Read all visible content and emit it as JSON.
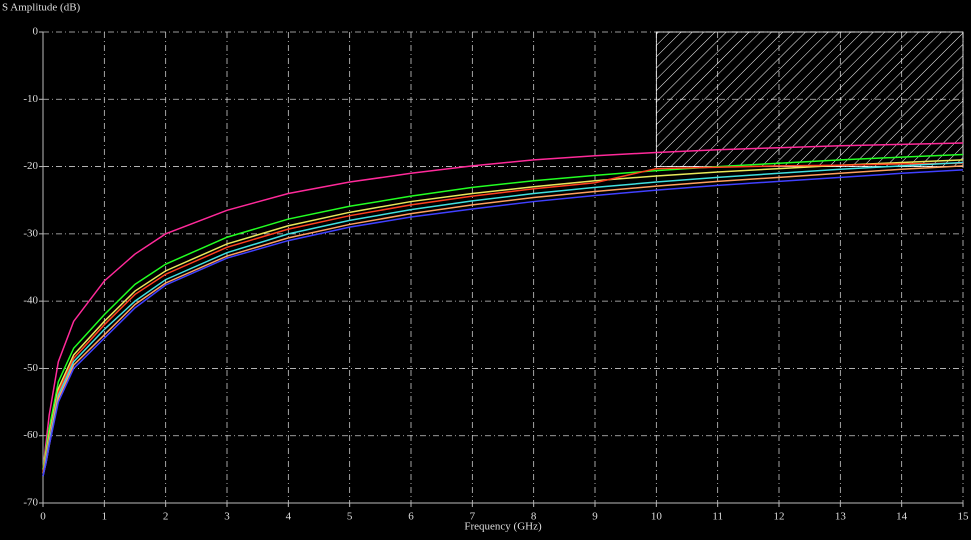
{
  "chart_data": {
    "type": "line",
    "title": "S Amplitude (dB)",
    "x_label": "Frequency (GHz)",
    "x": [
      0,
      0.05,
      0.1,
      0.25,
      0.5,
      1,
      1.5,
      2,
      3,
      4,
      5,
      6,
      7,
      8,
      9,
      10,
      11,
      12,
      13,
      14,
      15
    ],
    "series": [
      {
        "color": "#ff2a9a",
        "values": [
          -65,
          -61,
          -57,
          -49,
          -43,
          -37,
          -33,
          -30,
          -26.5,
          -24,
          -22.3,
          -21,
          -19.9,
          -19,
          -18.4,
          -17.9,
          -17.5,
          -17.2,
          -16.9,
          -16.7,
          -16.5
        ]
      },
      {
        "color": "#22ff22",
        "values": [
          -65,
          -62,
          -59,
          -52,
          -47,
          -42,
          -37.5,
          -34.5,
          -30.5,
          -27.8,
          -25.9,
          -24.4,
          -23.1,
          -22.1,
          -21.3,
          -20.6,
          -20,
          -19.5,
          -19,
          -18.6,
          -18.2
        ]
      },
      {
        "color": "#e8e85a",
        "values": [
          -65.5,
          -62.5,
          -60,
          -53,
          -48,
          -43,
          -38.5,
          -35.5,
          -31.5,
          -28.8,
          -26.8,
          -25.2,
          -24,
          -23,
          -22.1,
          -21.4,
          -20.8,
          -20.3,
          -19.8,
          -19.4,
          -19
        ]
      },
      {
        "color": "#ff4020",
        "values": [
          -65.5,
          -63,
          -60.5,
          -53.5,
          -48.5,
          -43.5,
          -39,
          -36,
          -32,
          -29.3,
          -27.3,
          -25.7,
          -24.4,
          -23.3,
          -22.4,
          -20.3,
          -20.1,
          -19.9,
          -19.8,
          -19.6,
          -19.5
        ]
      },
      {
        "color": "#40e0e0",
        "values": [
          -66,
          -63.5,
          -61,
          -54,
          -49,
          -44.2,
          -40,
          -36.8,
          -32.8,
          -30,
          -28,
          -26.4,
          -25.1,
          -24,
          -23.1,
          -22.3,
          -21.6,
          -21,
          -20.4,
          -19.9,
          -19.4
        ]
      },
      {
        "color": "#ffa060",
        "values": [
          -66,
          -64,
          -61.5,
          -54.5,
          -49.5,
          -45,
          -40.5,
          -37.3,
          -33.3,
          -30.6,
          -28.6,
          -27,
          -25.7,
          -24.6,
          -23.7,
          -22.9,
          -22.2,
          -21.6,
          -21,
          -20.4,
          -19.9
        ]
      },
      {
        "color": "#4040ff",
        "values": [
          -66,
          -64,
          -61.5,
          -55,
          -50,
          -45.5,
          -41,
          -37.6,
          -33.6,
          -31,
          -29,
          -27.5,
          -26.3,
          -25.2,
          -24.3,
          -23.5,
          -22.8,
          -22.2,
          -21.6,
          -21,
          -20.5
        ]
      }
    ],
    "mask": {
      "x": [
        10,
        15
      ],
      "y": [
        -20,
        0
      ]
    },
    "xlim": [
      0,
      15
    ],
    "xticks": [
      0,
      1,
      2,
      3,
      4,
      5,
      6,
      7,
      8,
      9,
      10,
      11,
      12,
      13,
      14,
      15
    ],
    "ylim": [
      -70,
      0
    ],
    "yticks": [
      0,
      -10,
      -20,
      -30,
      -40,
      -50,
      -60,
      -70
    ],
    "grid": true
  }
}
